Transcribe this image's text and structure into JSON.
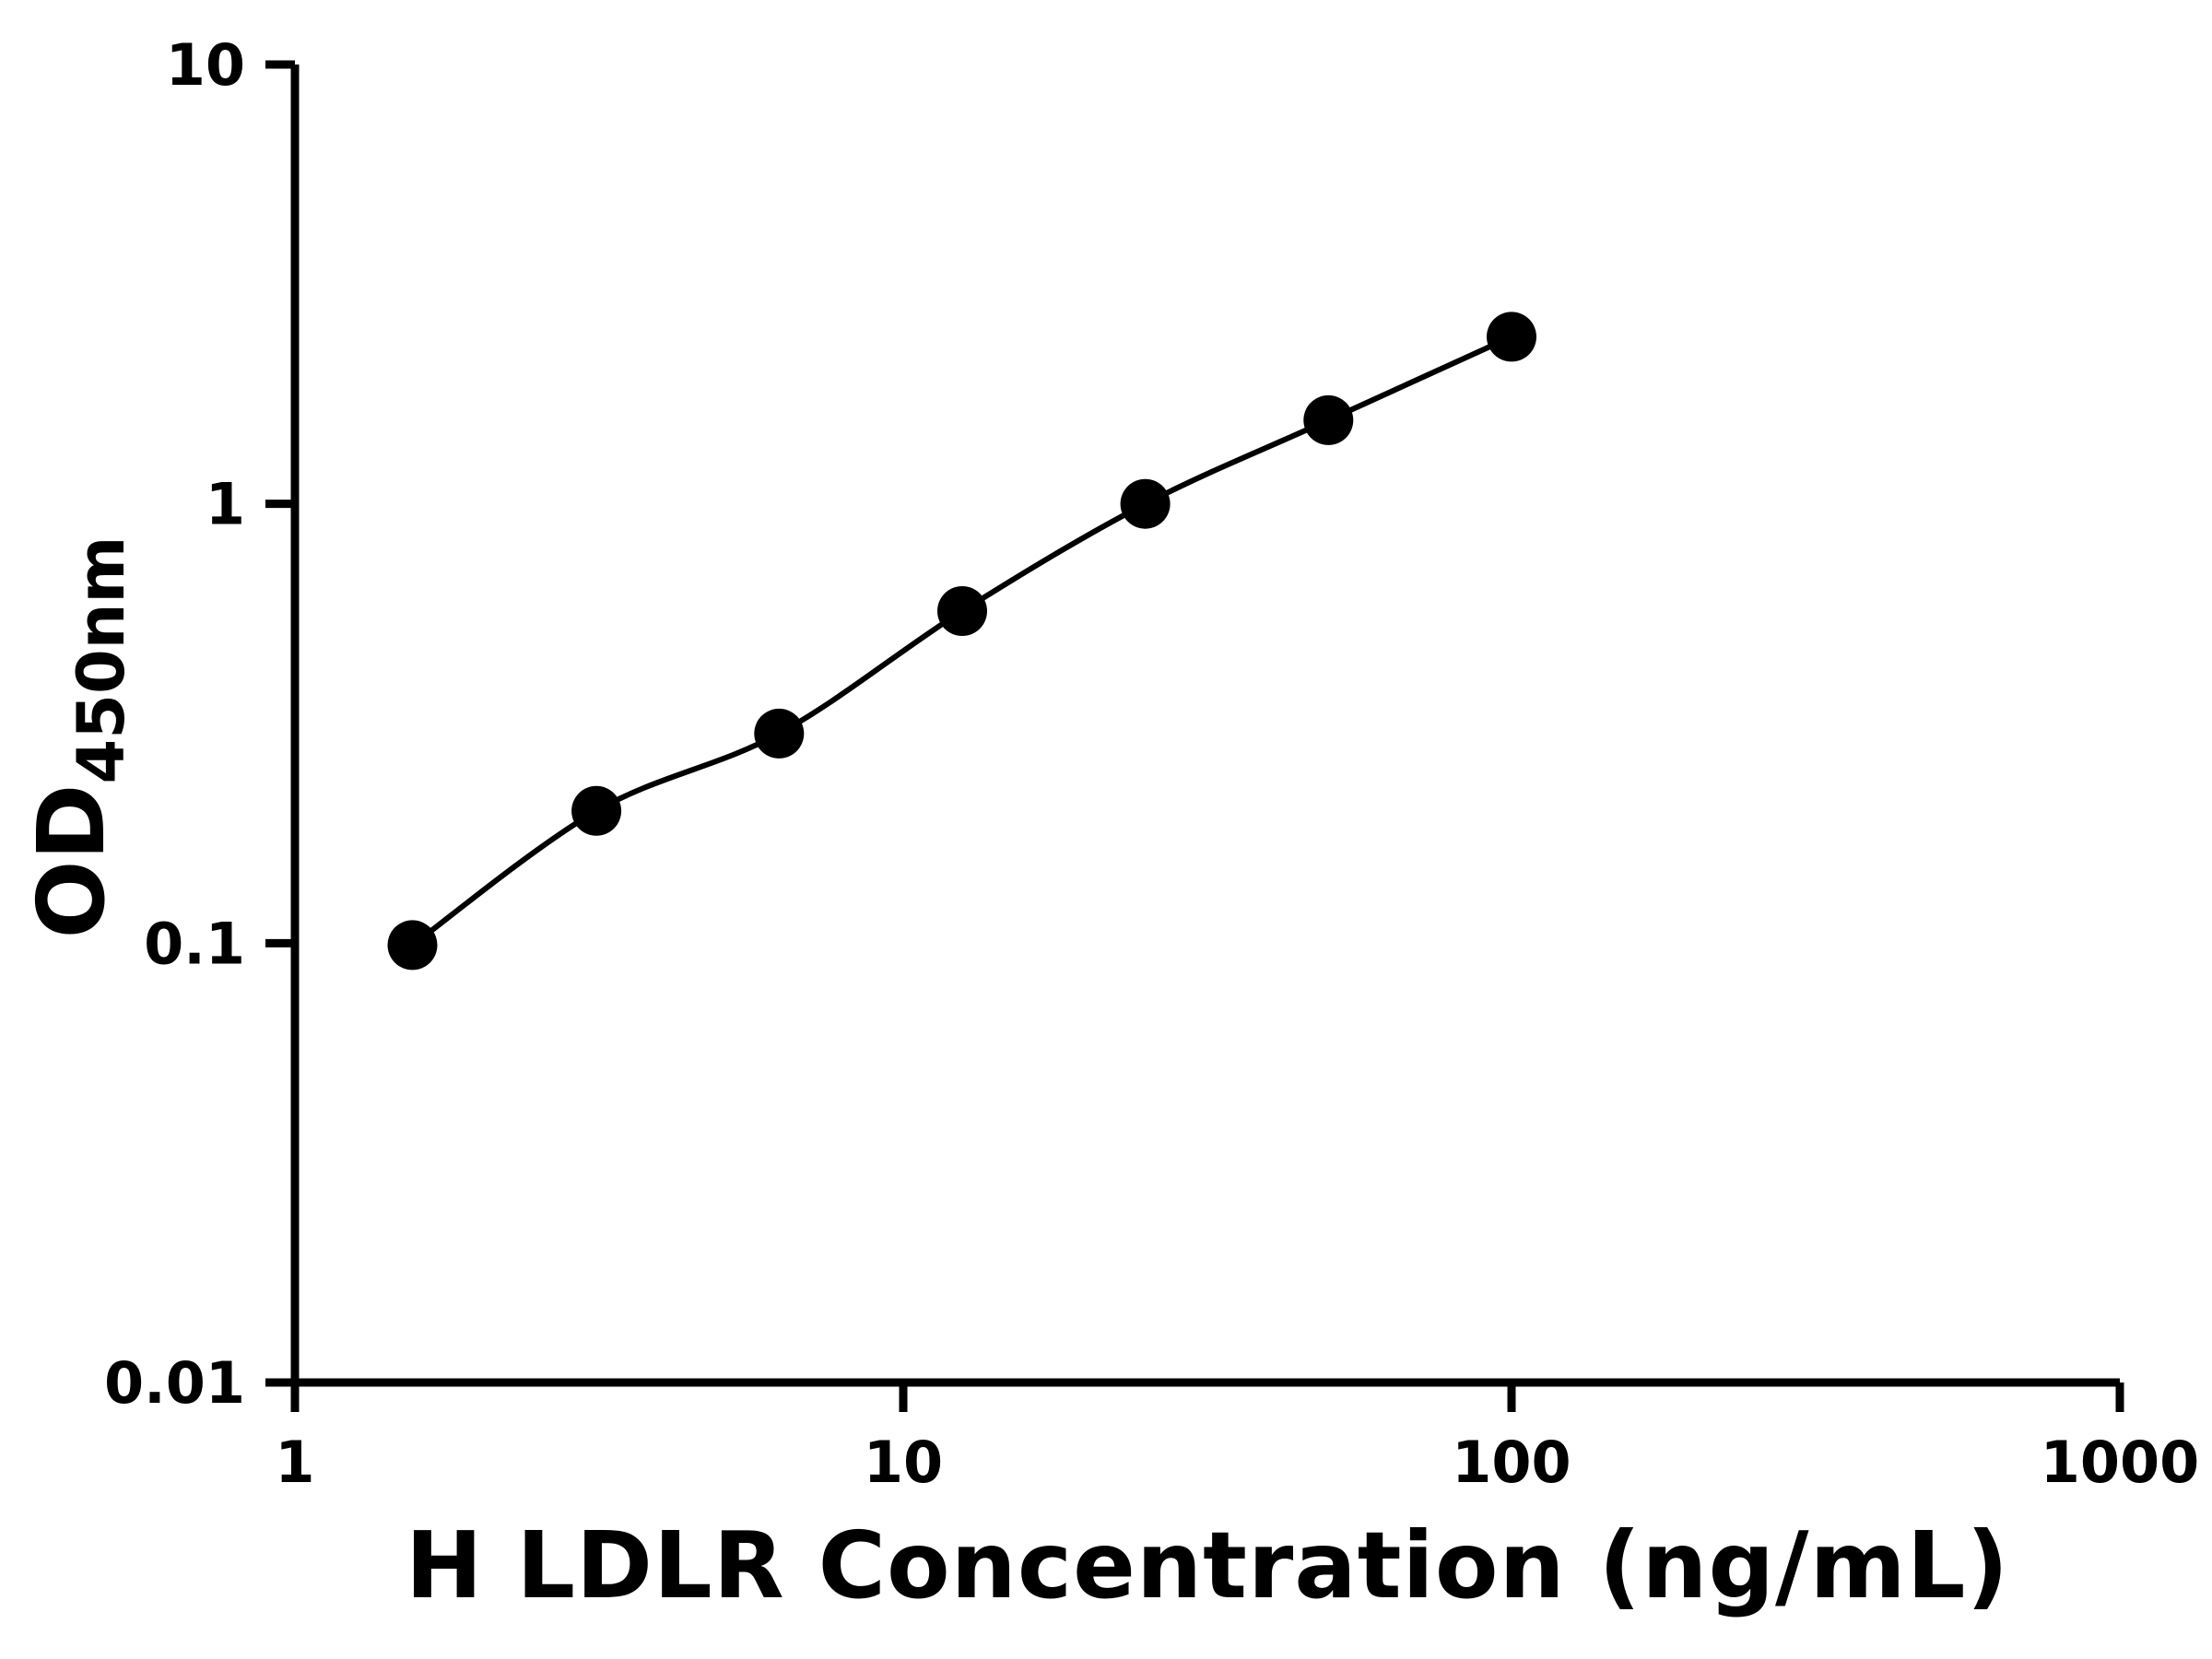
{
  "figure": {
    "background": "#ffffff"
  },
  "chart_data": {
    "type": "scatter",
    "title": "",
    "xlabel": "H LDLR Concentration (ng/mL)",
    "ylabel_main": "OD",
    "ylabel_sub": "450nm",
    "x_scale": "log",
    "y_scale": "log",
    "xlim": [
      1,
      1000
    ],
    "ylim": [
      0.01,
      10
    ],
    "grid": false,
    "legend": false,
    "color": "#000000",
    "x": [
      1.56,
      3.13,
      6.25,
      12.5,
      25,
      50,
      100
    ],
    "y": [
      0.099,
      0.2,
      0.3,
      0.57,
      1.0,
      1.55,
      2.4
    ],
    "marker": "filled-circle",
    "line_style": "smooth",
    "xticks": [
      {
        "value": 1,
        "label": "1"
      },
      {
        "value": 10,
        "label": "10"
      },
      {
        "value": 100,
        "label": "100"
      },
      {
        "value": 1000,
        "label": "1000"
      }
    ],
    "yticks": [
      {
        "value": 0.01,
        "label": "0.01"
      },
      {
        "value": 0.1,
        "label": "0.1"
      },
      {
        "value": 1,
        "label": "1"
      },
      {
        "value": 10,
        "label": "10"
      }
    ]
  }
}
